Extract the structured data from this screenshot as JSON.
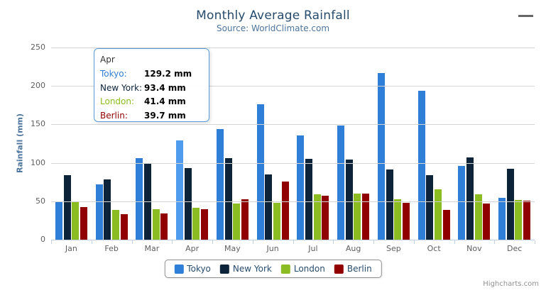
{
  "chart": {
    "title": "Monthly Average Rainfall",
    "subtitle": "Source: WorldClimate.com",
    "credits": "Highcharts.com"
  },
  "y_axis": {
    "title": "Rainfall (mm)"
  },
  "chart_data": {
    "type": "bar",
    "title": "Monthly Average Rainfall",
    "subtitle": "Source: WorldClimate.com",
    "xlabel": "",
    "ylabel": "Rainfall (mm)",
    "ylim": [
      0,
      250
    ],
    "yticks": [
      0,
      50,
      100,
      150,
      200,
      250
    ],
    "grid": true,
    "legend_position": "bottom",
    "categories": [
      "Jan",
      "Feb",
      "Mar",
      "Apr",
      "May",
      "Jun",
      "Jul",
      "Aug",
      "Sep",
      "Oct",
      "Nov",
      "Dec"
    ],
    "series": [
      {
        "name": "Tokyo",
        "color": "#2f7ed8",
        "values": [
          49.9,
          71.5,
          106.4,
          129.2,
          144.0,
          176.0,
          135.6,
          148.5,
          216.4,
          194.1,
          95.6,
          54.4
        ]
      },
      {
        "name": "New York",
        "color": "#0d233a",
        "values": [
          83.6,
          78.8,
          98.5,
          93.4,
          106.0,
          84.5,
          105.0,
          104.3,
          91.2,
          83.5,
          106.6,
          92.3
        ]
      },
      {
        "name": "London",
        "color": "#8bbc21",
        "values": [
          48.9,
          38.8,
          39.3,
          41.4,
          47.0,
          48.3,
          59.0,
          59.6,
          52.4,
          65.2,
          59.3,
          51.2
        ]
      },
      {
        "name": "Berlin",
        "color": "#910000",
        "values": [
          42.4,
          33.2,
          34.5,
          39.7,
          52.6,
          75.5,
          57.4,
          60.4,
          47.6,
          39.1,
          46.8,
          51.1
        ]
      }
    ]
  },
  "hover": {
    "series": "Tokyo",
    "category": "Apr",
    "highlight_color": "#4f9cee"
  },
  "tooltip": {
    "header": "Apr",
    "border_color": "#5b9cd8",
    "rows": [
      {
        "label": "Tokyo:",
        "value": "129.2 mm",
        "color": "#2f7ed8"
      },
      {
        "label": "New York:",
        "value": "93.4 mm",
        "color": "#0d233a"
      },
      {
        "label": "London:",
        "value": "41.4 mm",
        "color": "#8bbc21"
      },
      {
        "label": "Berlin:",
        "value": "39.7 mm",
        "color": "#910000"
      }
    ]
  },
  "legend": {
    "items": [
      {
        "label": "Tokyo",
        "color": "#2f7ed8"
      },
      {
        "label": "New York",
        "color": "#0d233a"
      },
      {
        "label": "London",
        "color": "#8bbc21"
      },
      {
        "label": "Berlin",
        "color": "#910000"
      }
    ]
  }
}
